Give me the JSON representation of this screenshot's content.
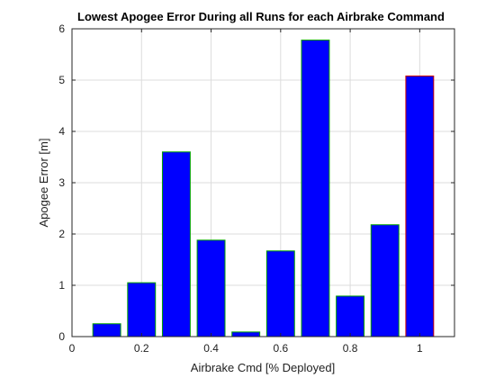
{
  "chart_data": {
    "type": "bar",
    "title": "Lowest Apogee Error During all Runs for each Airbrake Command",
    "xlabel": "Airbrake Cmd [% Deployed]",
    "ylabel": "Apogee Error [m]",
    "xlim": [
      0,
      1.1
    ],
    "ylim": [
      0,
      6
    ],
    "xticks": [
      0,
      0.2,
      0.4,
      0.6,
      0.8,
      1
    ],
    "yticks": [
      0,
      1,
      2,
      3,
      4,
      5,
      6
    ],
    "grid": true,
    "bar_width": 0.08,
    "bar_color": "#0000ff",
    "x": [
      0.1,
      0.2,
      0.3,
      0.4,
      0.5,
      0.6,
      0.7,
      0.8,
      0.9,
      1.0
    ],
    "values": [
      0.25,
      1.05,
      3.6,
      1.88,
      0.09,
      1.67,
      5.78,
      0.79,
      2.18,
      5.08
    ],
    "edge_colors": [
      "#00a000",
      "#00a000",
      "#00a000",
      "#00a000",
      "#00a000",
      "#00a000",
      "#00a000",
      "#00a000",
      "#00a000",
      "#cc0000"
    ]
  }
}
